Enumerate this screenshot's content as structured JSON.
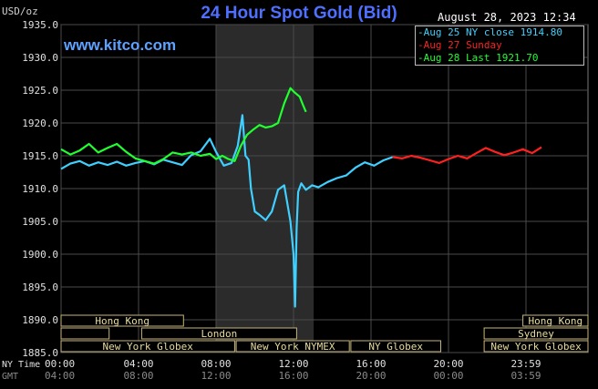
{
  "header": {
    "title": "24 Hour Spot Gold (Bid)",
    "unit": "USD/oz",
    "datetime": "August 28, 2023 12:34",
    "brand": "www.kitco.com"
  },
  "legend": [
    {
      "text": "Aug 25 NY close 1914.80",
      "color": "#3fd0ff"
    },
    {
      "text": "Aug 27 Sunday",
      "color": "#ff2020"
    },
    {
      "text": "Aug 28 Last 1921.70",
      "color": "#20ff30"
    }
  ],
  "axis_row_labels": {
    "ny": "NY Time",
    "gmt": "GMT"
  },
  "sessions": [
    {
      "label": "Hong Kong",
      "start": 0,
      "end": 7.9,
      "row": 0
    },
    {
      "label": "",
      "start": 0,
      "end": 3.1,
      "row": 1
    },
    {
      "label": "London",
      "start": 5.2,
      "end": 15.2,
      "row": 1
    },
    {
      "label": "New York Globex",
      "start": 0,
      "end": 11.2,
      "row": 2
    },
    {
      "label": "New York NYMEX",
      "start": 11.3,
      "end": 18.6,
      "row": 2
    },
    {
      "label": "NY Globex",
      "start": 18.7,
      "end": 24.5,
      "row": 2
    },
    {
      "label": "Hong Kong",
      "start": 29.8,
      "end": 34,
      "row": 0
    },
    {
      "label": "Sydney",
      "start": 27.3,
      "end": 34,
      "row": 1
    },
    {
      "label": "New York Globex",
      "start": 27.3,
      "end": 34,
      "row": 2
    }
  ],
  "chart_data": {
    "type": "line",
    "title": "24 Hour Spot Gold (Bid)",
    "ylabel": "USD/oz",
    "ylim": [
      1885,
      1935
    ],
    "y_ticks": [
      "1935.0",
      "1930.0",
      "1925.0",
      "1920.0",
      "1915.0",
      "1910.0",
      "1905.0",
      "1900.0",
      "1895.0",
      "1890.0",
      "1885.0"
    ],
    "xlim": [
      0,
      34
    ],
    "x_ticks": [
      {
        "x": 0,
        "ny": "00:00",
        "gmt": "04:00"
      },
      {
        "x": 5,
        "ny": "04:00",
        "gmt": "08:00"
      },
      {
        "x": 10,
        "ny": "08:00",
        "gmt": "12:00"
      },
      {
        "x": 15,
        "ny": "12:00",
        "gmt": "16:00"
      },
      {
        "x": 20,
        "ny": "16:00",
        "gmt": "20:00"
      },
      {
        "x": 25,
        "ny": "20:00",
        "gmt": "00:00"
      },
      {
        "x": 30,
        "ny": "23:59",
        "gmt": "03:59"
      }
    ],
    "highlight_range": [
      10.0,
      16.3
    ],
    "grid": true,
    "series": [
      {
        "name": "Aug 25 NY close 1914.80",
        "color": "#3fd0ff",
        "x": [
          0,
          0.6,
          1.2,
          1.8,
          2.4,
          3,
          3.6,
          4.2,
          4.8,
          5.4,
          6,
          6.6,
          7.2,
          7.8,
          8.4,
          9,
          9.6,
          10,
          10.5,
          11,
          11.4,
          11.7,
          11.9,
          12.1,
          12.25,
          12.5,
          12.8,
          13.2,
          13.6,
          14,
          14.4,
          14.8,
          15,
          15.1,
          15.2,
          15.3,
          15.5,
          15.8,
          16.2,
          16.6,
          17.2,
          17.8,
          18.4,
          19,
          19.6,
          20.2,
          20.8,
          21.4
        ],
        "values": [
          1913.0,
          1913.8,
          1914.2,
          1913.5,
          1914.0,
          1913.6,
          1914.1,
          1913.5,
          1913.9,
          1914.2,
          1913.7,
          1914.4,
          1914.0,
          1913.6,
          1915.1,
          1915.7,
          1917.6,
          1915.6,
          1913.5,
          1913.9,
          1916.5,
          1921.2,
          1915.0,
          1914.4,
          1910.0,
          1906.5,
          1906.0,
          1905.2,
          1906.5,
          1909.8,
          1910.5,
          1905.0,
          1900.0,
          1892.0,
          1904.0,
          1909.5,
          1910.8,
          1909.8,
          1910.5,
          1910.2,
          1911.0,
          1911.6,
          1912.0,
          1913.2,
          1914.0,
          1913.5,
          1914.3,
          1914.8
        ]
      },
      {
        "name": "Aug 27 Sunday",
        "color": "#ff2020",
        "x": [
          21.4,
          22,
          22.6,
          23.2,
          23.8,
          24.4,
          25,
          25.6,
          26.2,
          26.8,
          27.4,
          28,
          28.6,
          29.2,
          29.8,
          30.4,
          31
        ],
        "values": [
          1914.8,
          1914.6,
          1915.0,
          1914.7,
          1914.3,
          1913.9,
          1914.5,
          1915.0,
          1914.6,
          1915.4,
          1916.2,
          1915.6,
          1915.1,
          1915.5,
          1916.0,
          1915.4,
          1916.3
        ]
      },
      {
        "name": "Aug 28 Last 1921.70",
        "color": "#20ff30",
        "x": [
          0,
          0.6,
          1.2,
          1.8,
          2.4,
          3,
          3.6,
          4.2,
          4.8,
          5.4,
          6,
          6.6,
          7.2,
          7.8,
          8.4,
          9,
          9.6,
          10,
          10.4,
          10.8,
          11.2,
          11.6,
          12,
          12.4,
          12.8,
          13.2,
          13.6,
          14,
          14.4,
          14.8,
          15,
          15.2,
          15.4,
          15.6,
          15.8
        ],
        "values": [
          1916.0,
          1915.2,
          1915.8,
          1916.8,
          1915.5,
          1916.2,
          1916.8,
          1915.6,
          1914.6,
          1914.2,
          1913.8,
          1914.5,
          1915.5,
          1915.2,
          1915.5,
          1915.0,
          1915.3,
          1914.5,
          1915.0,
          1914.5,
          1914.2,
          1916.5,
          1918.2,
          1919.0,
          1919.7,
          1919.3,
          1919.5,
          1920.0,
          1923.0,
          1925.3,
          1924.8,
          1924.4,
          1924.0,
          1922.8,
          1921.7
        ]
      }
    ]
  }
}
